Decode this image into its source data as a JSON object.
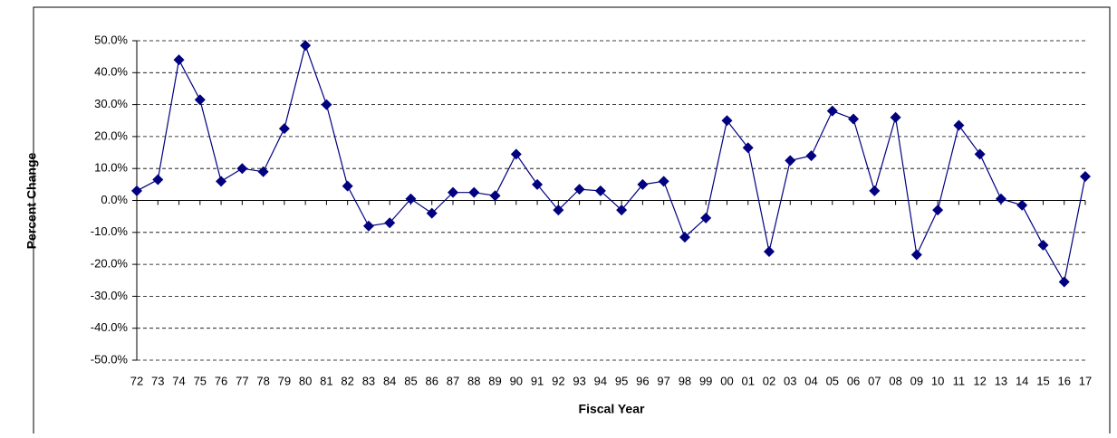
{
  "chart_data": {
    "type": "line",
    "x_label": "Fiscal Year",
    "y_label": "Percent Change",
    "categories": [
      "72",
      "73",
      "74",
      "75",
      "76",
      "77",
      "78",
      "79",
      "80",
      "81",
      "82",
      "83",
      "84",
      "85",
      "86",
      "87",
      "88",
      "89",
      "90",
      "91",
      "92",
      "93",
      "94",
      "95",
      "96",
      "97",
      "98",
      "99",
      "00",
      "01",
      "02",
      "03",
      "04",
      "05",
      "06",
      "07",
      "08",
      "09",
      "10",
      "11",
      "12",
      "13",
      "14",
      "15",
      "16",
      "17"
    ],
    "series": [
      {
        "color": "#000080",
        "values": [
          3,
          6.5,
          44,
          31.5,
          6,
          10,
          9,
          22.5,
          48.5,
          30,
          4.5,
          -8,
          -7,
          0.5,
          -4,
          2.5,
          2.5,
          1.5,
          14.5,
          5,
          -3,
          3.5,
          3,
          -3,
          5,
          6,
          -11.5,
          -5.5,
          25,
          16.5,
          -16,
          12.5,
          14,
          28,
          25.5,
          3,
          26,
          -17,
          -3,
          23.5,
          14.5,
          0.5,
          -1.5,
          -14,
          -25.5,
          7.5
        ]
      }
    ],
    "ylim": [
      -50,
      50
    ],
    "yticks": [
      {
        "value": -50,
        "label": "-50.0%"
      },
      {
        "value": -40,
        "label": "-40.0%"
      },
      {
        "value": -30,
        "label": "-30.0%"
      },
      {
        "value": -20,
        "label": "-20.0%"
      },
      {
        "value": -10,
        "label": "-10.0%"
      },
      {
        "value": 0,
        "label": "0.0%"
      },
      {
        "value": 10,
        "label": "10.0%"
      },
      {
        "value": 20,
        "label": "20.0%"
      },
      {
        "value": 30,
        "label": "30.0%"
      },
      {
        "value": 40,
        "label": "40.0%"
      },
      {
        "value": 50,
        "label": "50.0%"
      }
    ],
    "grid": true
  }
}
